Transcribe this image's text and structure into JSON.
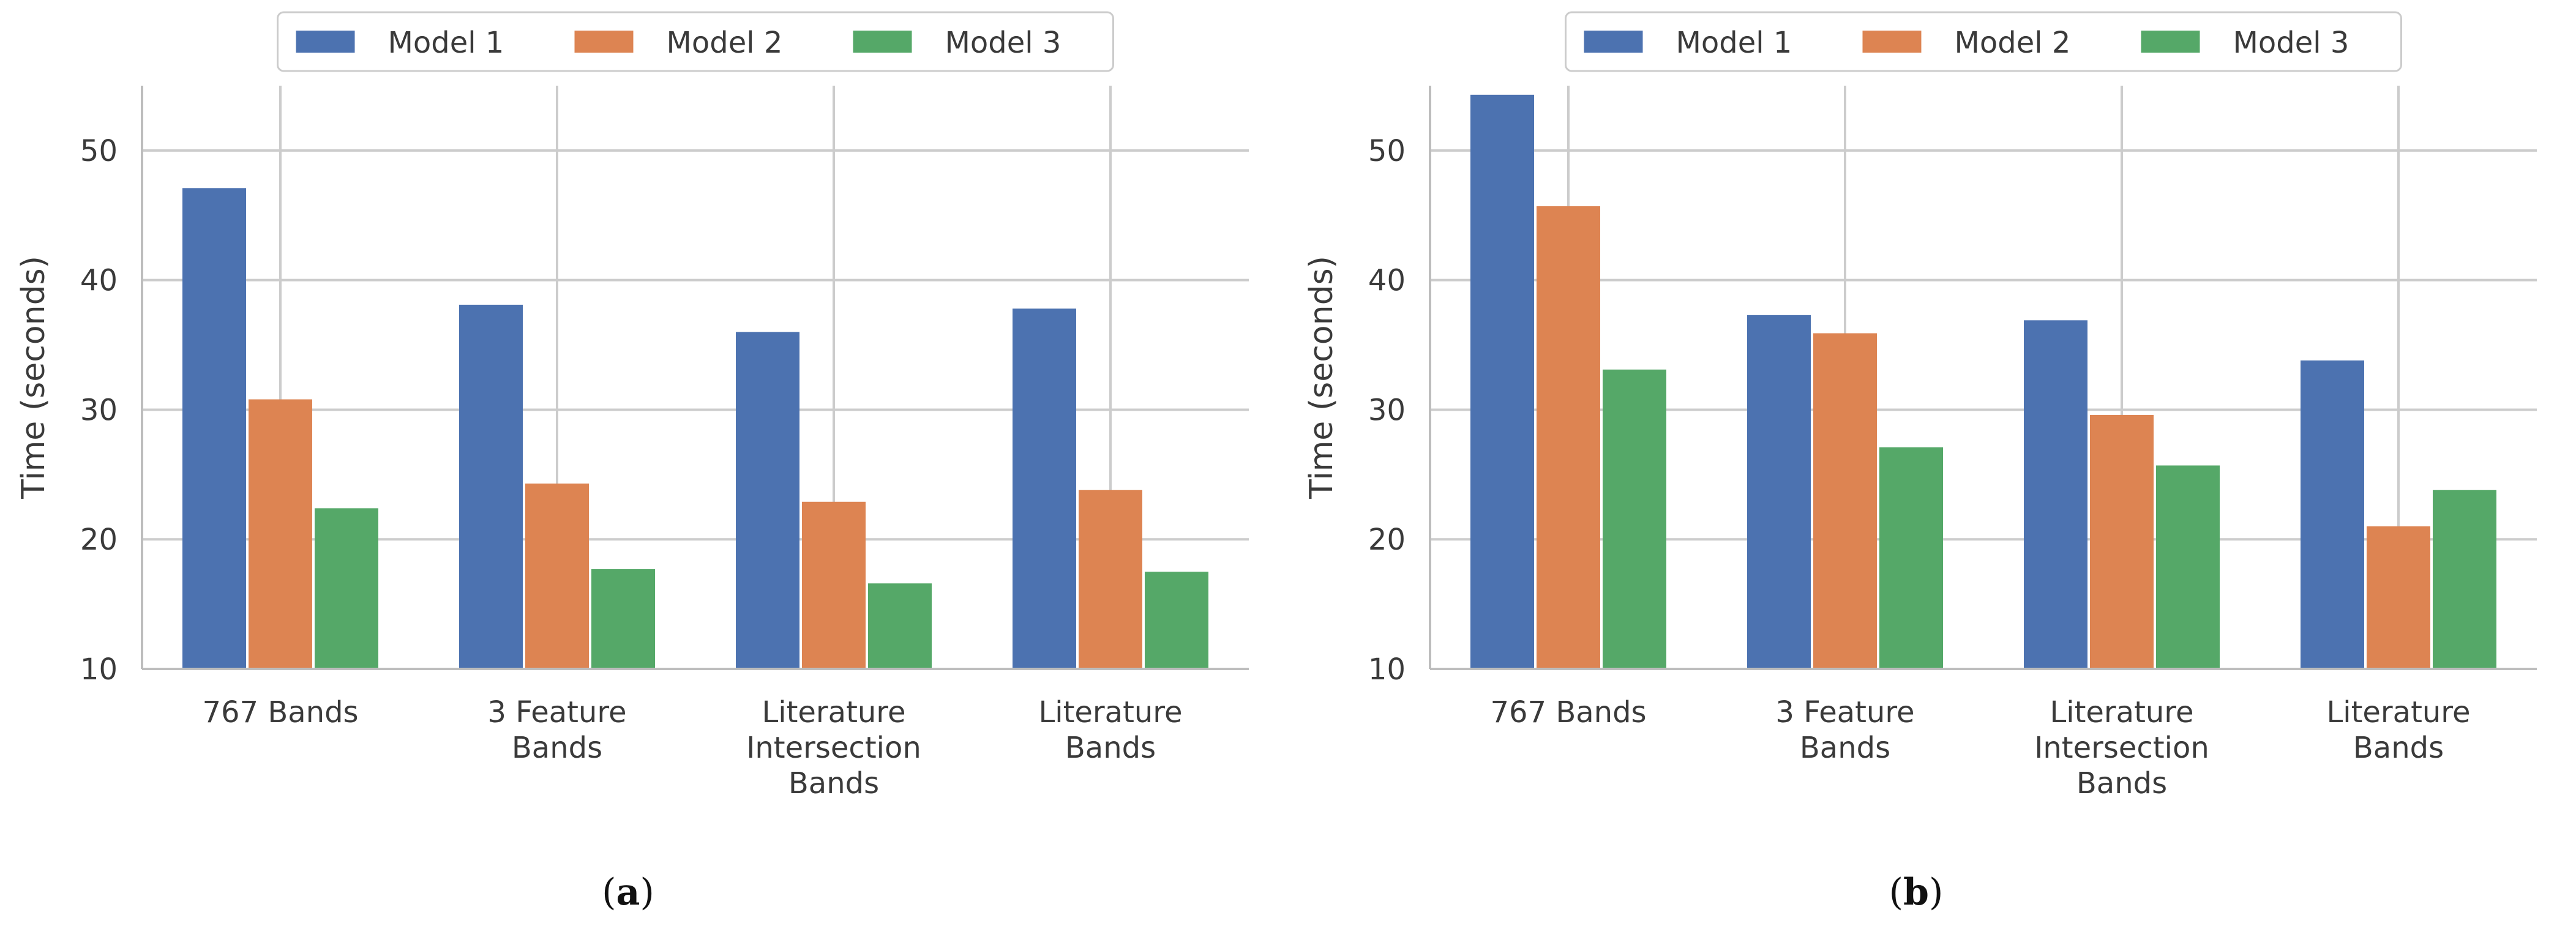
{
  "chart_data": [
    {
      "type": "bar",
      "caption": "(a)",
      "caption_letter": "a",
      "ylabel": "Time (seconds)",
      "xlabel": "",
      "ylim": [
        10,
        55
      ],
      "yticks": [
        10,
        20,
        30,
        40,
        50
      ],
      "grid": true,
      "legend_position": "top-center",
      "categories": [
        [
          "767 Bands"
        ],
        [
          "3 Feature",
          "Bands"
        ],
        [
          "Literature",
          "Intersection",
          "Bands"
        ],
        [
          "Literature",
          "Bands"
        ]
      ],
      "series": [
        {
          "name": "Model 1",
          "color": "#4c72b0",
          "values": [
            47.1,
            38.1,
            36.0,
            37.8
          ]
        },
        {
          "name": "Model 2",
          "color": "#dd8452",
          "values": [
            30.8,
            24.3,
            22.9,
            23.8
          ]
        },
        {
          "name": "Model 3",
          "color": "#55a868",
          "values": [
            22.4,
            17.7,
            16.6,
            17.5
          ]
        }
      ]
    },
    {
      "type": "bar",
      "caption": "(b)",
      "caption_letter": "b",
      "ylabel": "Time (seconds)",
      "xlabel": "",
      "ylim": [
        10,
        55
      ],
      "yticks": [
        10,
        20,
        30,
        40,
        50
      ],
      "grid": true,
      "legend_position": "top-center",
      "categories": [
        [
          "767 Bands"
        ],
        [
          "3 Feature",
          "Bands"
        ],
        [
          "Literature",
          "Intersection",
          "Bands"
        ],
        [
          "Literature",
          "Bands"
        ]
      ],
      "series": [
        {
          "name": "Model 1",
          "color": "#4c72b0",
          "values": [
            54.3,
            37.3,
            36.9,
            33.8
          ]
        },
        {
          "name": "Model 2",
          "color": "#dd8452",
          "values": [
            45.7,
            35.9,
            29.6,
            21.0
          ]
        },
        {
          "name": "Model 3",
          "color": "#55a868",
          "values": [
            33.1,
            27.1,
            25.7,
            23.8
          ]
        }
      ]
    }
  ]
}
